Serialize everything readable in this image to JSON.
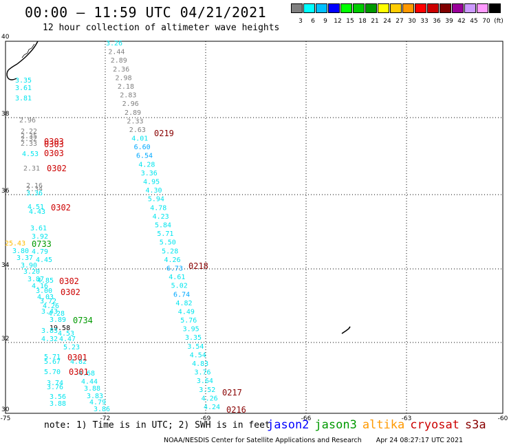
{
  "header": {
    "title": "00:00 – 11:59 UTC 04/21/2021",
    "subtitle": "12 hour collection of altimeter wave heights"
  },
  "legend": {
    "colors": [
      "#808080",
      "#00ffff",
      "#00bfff",
      "#0000ff",
      "#00ff00",
      "#00cc00",
      "#009900",
      "#ffff00",
      "#ffcc00",
      "#ff9900",
      "#ff0000",
      "#cc0000",
      "#800000",
      "#990099",
      "#cc99ff",
      "#ff99ff",
      "#000000"
    ],
    "labels": [
      "3",
      "6",
      "9",
      "12",
      "15",
      "18",
      "21",
      "24",
      "27",
      "30",
      "33",
      "36",
      "39",
      "42",
      "45",
      "70",
      "(ft)"
    ]
  },
  "axes": {
    "lat_labels": [
      "40",
      "38",
      "36",
      "34",
      "32",
      "30"
    ],
    "lon_labels": [
      "-75",
      "-72",
      "-69",
      "-66",
      "-63",
      "-60"
    ]
  },
  "swh_colors": {
    "gray": "#808080",
    "cyan": "#00e5ee",
    "blue": "#00a8ff",
    "amber": "#ffbb00",
    "black": "#000000"
  },
  "satellite_colors": {
    "jason2": "#0000ff",
    "jason3": "#009900",
    "altika": "#ff9900",
    "cryosat": "#cc0000",
    "s3a": "#880000"
  },
  "track_a_values": [
    {
      "v": "3.26",
      "c": "cyan"
    },
    {
      "v": "2.44",
      "c": "gray"
    },
    {
      "v": "2.89",
      "c": "gray"
    },
    {
      "v": "2.36",
      "c": "gray"
    },
    {
      "v": "2.98",
      "c": "gray"
    },
    {
      "v": "2.18",
      "c": "gray"
    },
    {
      "v": "2.83",
      "c": "gray"
    },
    {
      "v": "2.96",
      "c": "gray"
    },
    {
      "v": "2.89",
      "c": "gray"
    },
    {
      "v": "2.33",
      "c": "gray"
    },
    {
      "v": "2.63",
      "c": "gray"
    },
    {
      "v": "4.01",
      "c": "cyan"
    },
    {
      "v": "6.60",
      "c": "blue"
    },
    {
      "v": "6.54",
      "c": "blue"
    },
    {
      "v": "4.28",
      "c": "cyan"
    },
    {
      "v": "3.36",
      "c": "cyan"
    },
    {
      "v": "4.95",
      "c": "cyan"
    },
    {
      "v": "4.30",
      "c": "cyan"
    },
    {
      "v": "5.94",
      "c": "cyan"
    },
    {
      "v": "4.78",
      "c": "cyan"
    },
    {
      "v": "4.23",
      "c": "cyan"
    },
    {
      "v": "5.84",
      "c": "cyan"
    },
    {
      "v": "5.71",
      "c": "cyan"
    },
    {
      "v": "5.50",
      "c": "cyan"
    },
    {
      "v": "5.28",
      "c": "cyan"
    },
    {
      "v": "4.26",
      "c": "cyan"
    },
    {
      "v": "6.73",
      "c": "blue"
    },
    {
      "v": "4.61",
      "c": "cyan"
    },
    {
      "v": "5.02",
      "c": "cyan"
    },
    {
      "v": "6.74",
      "c": "blue"
    },
    {
      "v": "4.82",
      "c": "cyan"
    },
    {
      "v": "4.49",
      "c": "cyan"
    },
    {
      "v": "5.76",
      "c": "cyan"
    },
    {
      "v": "3.95",
      "c": "cyan"
    },
    {
      "v": "3.35",
      "c": "cyan"
    },
    {
      "v": "3.54",
      "c": "cyan"
    },
    {
      "v": "4.54",
      "c": "cyan"
    },
    {
      "v": "4.83",
      "c": "cyan"
    },
    {
      "v": "3.76",
      "c": "cyan"
    },
    {
      "v": "3.64",
      "c": "cyan"
    },
    {
      "v": "3.52",
      "c": "cyan"
    },
    {
      "v": "4.26",
      "c": "cyan"
    },
    {
      "v": "4.24",
      "c": "cyan"
    }
  ],
  "coastal_values": [
    {
      "v": "3.35",
      "c": "cyan"
    },
    {
      "v": "3.61",
      "c": "cyan"
    },
    {
      "v": "3.81",
      "c": "cyan"
    },
    {
      "v": "2.96",
      "c": "gray"
    },
    {
      "v": "2.22",
      "c": "gray"
    },
    {
      "v": "2.35",
      "c": "gray"
    },
    {
      "v": "2.32",
      "c": "gray"
    },
    {
      "v": "2.33",
      "c": "gray"
    },
    {
      "v": "4.53",
      "c": "cyan"
    },
    {
      "v": "2.31",
      "c": "gray"
    },
    {
      "v": "2.16",
      "c": "gray"
    },
    {
      "v": "2.34",
      "c": "gray"
    },
    {
      "v": "3.36",
      "c": "cyan"
    },
    {
      "v": "4.51",
      "c": "cyan"
    },
    {
      "v": "4.43",
      "c": "cyan"
    },
    {
      "v": "3.61",
      "c": "cyan"
    },
    {
      "v": "3.92",
      "c": "cyan"
    },
    {
      "v": "25.43",
      "c": "amber"
    },
    {
      "v": "3.80",
      "c": "cyan"
    },
    {
      "v": "4.79",
      "c": "cyan"
    },
    {
      "v": "3.37",
      "c": "cyan"
    },
    {
      "v": "4.45",
      "c": "cyan"
    },
    {
      "v": "3.90",
      "c": "cyan"
    },
    {
      "v": "3.20",
      "c": "cyan"
    },
    {
      "v": "3.87",
      "c": "cyan"
    },
    {
      "v": "4.85",
      "c": "cyan"
    },
    {
      "v": "4.16",
      "c": "cyan"
    },
    {
      "v": "3.00",
      "c": "cyan"
    },
    {
      "v": "4.03",
      "c": "cyan"
    },
    {
      "v": "3.72",
      "c": "cyan"
    },
    {
      "v": "4.26",
      "c": "cyan"
    },
    {
      "v": "3.43",
      "c": "cyan"
    },
    {
      "v": "4.28",
      "c": "cyan"
    },
    {
      "v": "3.89",
      "c": "cyan"
    },
    {
      "v": "19.58",
      "c": "black"
    },
    {
      "v": "3.83",
      "c": "cyan"
    },
    {
      "v": "4.53",
      "c": "cyan"
    },
    {
      "v": "4.32",
      "c": "cyan"
    },
    {
      "v": "4.47",
      "c": "cyan"
    },
    {
      "v": "5.23",
      "c": "cyan"
    },
    {
      "v": "5.71",
      "c": "cyan"
    },
    {
      "v": "5.67",
      "c": "cyan"
    },
    {
      "v": "4.82",
      "c": "cyan"
    },
    {
      "v": "5.70",
      "c": "cyan"
    },
    {
      "v": "3.74",
      "c": "cyan"
    },
    {
      "v": "3.76",
      "c": "cyan"
    },
    {
      "v": "4.68",
      "c": "cyan"
    },
    {
      "v": "4.44",
      "c": "cyan"
    },
    {
      "v": "3.88",
      "c": "cyan"
    },
    {
      "v": "3.56",
      "c": "cyan"
    },
    {
      "v": "3.83",
      "c": "cyan"
    },
    {
      "v": "3.88",
      "c": "cyan"
    },
    {
      "v": "4.79",
      "c": "cyan"
    },
    {
      "v": "3.86",
      "c": "cyan"
    }
  ],
  "pass_times": [
    {
      "t": "0219",
      "sat": "s3a"
    },
    {
      "t": "0303",
      "sat": "cryosat"
    },
    {
      "t": "0303",
      "sat": "cryosat"
    },
    {
      "t": "0303",
      "sat": "cryosat"
    },
    {
      "t": "0302",
      "sat": "cryosat"
    },
    {
      "t": "0302",
      "sat": "cryosat"
    },
    {
      "t": "0733",
      "sat": "jason3"
    },
    {
      "t": "0218",
      "sat": "s3a"
    },
    {
      "t": "0302",
      "sat": "cryosat"
    },
    {
      "t": "0302",
      "sat": "cryosat"
    },
    {
      "t": "0734",
      "sat": "jason3"
    },
    {
      "t": "0301",
      "sat": "cryosat"
    },
    {
      "t": "0301",
      "sat": "cryosat"
    },
    {
      "t": "0217",
      "sat": "s3a"
    },
    {
      "t": "0216",
      "sat": "s3a"
    }
  ],
  "note": "note: 1) Time is in UTC; 2) SWH is in feet",
  "satellites": [
    "jason2",
    "jason3",
    "altika",
    "cryosat",
    "s3a"
  ],
  "footer": {
    "credit": "NOAA/NESDIS Center for Satellite Applications and Research",
    "timestamp": "Apr 24 08:27:17 UTC 2021"
  }
}
